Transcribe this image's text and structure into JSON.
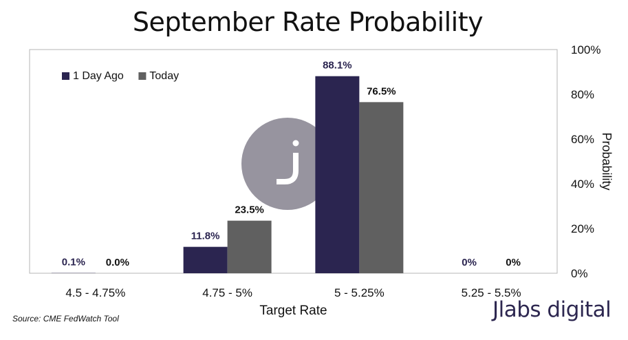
{
  "header": {
    "title": "September Rate Probability"
  },
  "footer": {
    "source": "Source: CME FedWatch Tool",
    "brand": "Jlabs digital"
  },
  "colors": {
    "series_1": "#2b2550",
    "series_2": "#606060",
    "watermark": "#97949f"
  },
  "chart_data": {
    "type": "bar",
    "title": "September Rate Probability",
    "xlabel": "Target Rate",
    "ylabel": "Probability",
    "categories": [
      "4.5 - 4.75%",
      "4.75 - 5%",
      "5 - 5.25%",
      "5.25 - 5.5%"
    ],
    "series": [
      {
        "name": "1 Day Ago",
        "values": [
          0.1,
          11.8,
          88.1,
          0
        ],
        "labels": [
          "0.1%",
          "11.8%",
          "88.1%",
          "0%"
        ]
      },
      {
        "name": "Today",
        "values": [
          0.0,
          23.5,
          76.5,
          0
        ],
        "labels": [
          "0.0%",
          "23.5%",
          "76.5%",
          "0%"
        ]
      }
    ],
    "ylim": [
      0,
      100
    ],
    "yticks": [
      0,
      20,
      40,
      60,
      80,
      100
    ],
    "ytick_labels": [
      "0%",
      "20%",
      "40%",
      "60%",
      "80%",
      "100%"
    ],
    "y_axis_side": "right",
    "grid": false,
    "legend": "top-left"
  }
}
